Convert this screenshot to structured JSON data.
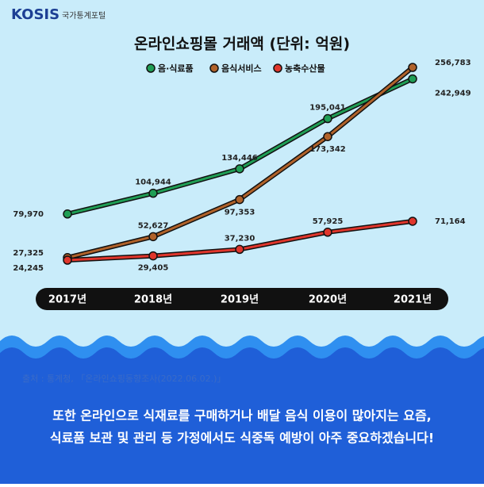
{
  "logo": {
    "brand": "KOSIS",
    "subtitle": "국가통계포털"
  },
  "chart_data": {
    "type": "line",
    "title": "온라인쇼핑몰 거래액 (단위: 억원)",
    "categories": [
      "2017년",
      "2018년",
      "2019년",
      "2020년",
      "2021년"
    ],
    "series": [
      {
        "name": "음·식료품",
        "color": "#1f9e55",
        "values": [
          79970,
          104944,
          134446,
          195041,
          242949
        ],
        "value_labels": [
          "79,970",
          "104,944",
          "134,446",
          "195,041",
          "242,949"
        ]
      },
      {
        "name": "음식서비스",
        "color": "#b0622a",
        "values": [
          27325,
          52627,
          97353,
          173342,
          256783
        ],
        "value_labels": [
          "27,325",
          "52,627",
          "97,353",
          "173,342",
          "256,783"
        ]
      },
      {
        "name": "농축수산물",
        "color": "#e0362c",
        "values": [
          24245,
          29405,
          37230,
          57925,
          71164
        ],
        "value_labels": [
          "24,245",
          "29,405",
          "37,230",
          "57,925",
          "71,164"
        ]
      }
    ]
  },
  "source": "출처 : 통계청, 「온라인쇼핑동향조사(2022.06.02.)」",
  "message": [
    "또한 온라인으로 식재료를 구매하거나 배달 음식 이용이 많아지는 요즘,",
    "식료품 보관 및 관리 등 가정에서도 식중독 예방이 아주 중요하겠습니다!"
  ]
}
